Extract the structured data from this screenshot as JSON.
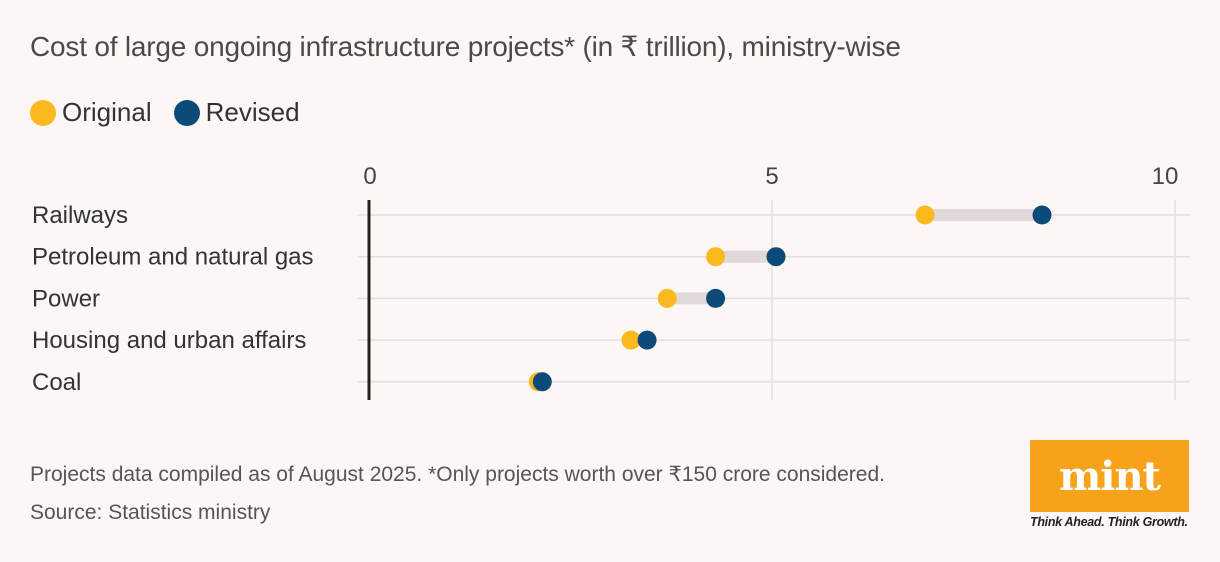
{
  "title": "Cost of large ongoing infrastructure projects* (in ₹ trillion), ministry-wise",
  "legend": {
    "original_label": "Original",
    "revised_label": "Revised"
  },
  "colors": {
    "original": "#fbb91f",
    "revised": "#0c4a7a",
    "connector": "#e0d9d8",
    "grid": "#e4dede",
    "axis": "#222222",
    "background": "#fcf7f5"
  },
  "footnote": "Projects data compiled as of August 2025. *Only projects worth over ₹150 crore considered.",
  "source": "Source: Statistics ministry",
  "logo": {
    "text": "mint",
    "tagline": "Think Ahead. Think Growth."
  },
  "chart_data": {
    "type": "dumbbell",
    "title": "Cost of large ongoing infrastructure projects* (in ₹ trillion), ministry-wise",
    "xlim": [
      0,
      10
    ],
    "xticks": [
      0,
      5,
      10
    ],
    "grid": true,
    "legend_position": "top-left",
    "categories": [
      "Railways",
      "Petroleum and natural gas",
      "Power",
      "Housing and urban affairs",
      "Coal"
    ],
    "series": [
      {
        "name": "Original",
        "values": [
          6.9,
          4.3,
          3.7,
          3.25,
          2.1
        ]
      },
      {
        "name": "Revised",
        "values": [
          8.35,
          5.05,
          4.3,
          3.45,
          2.15
        ]
      }
    ]
  }
}
